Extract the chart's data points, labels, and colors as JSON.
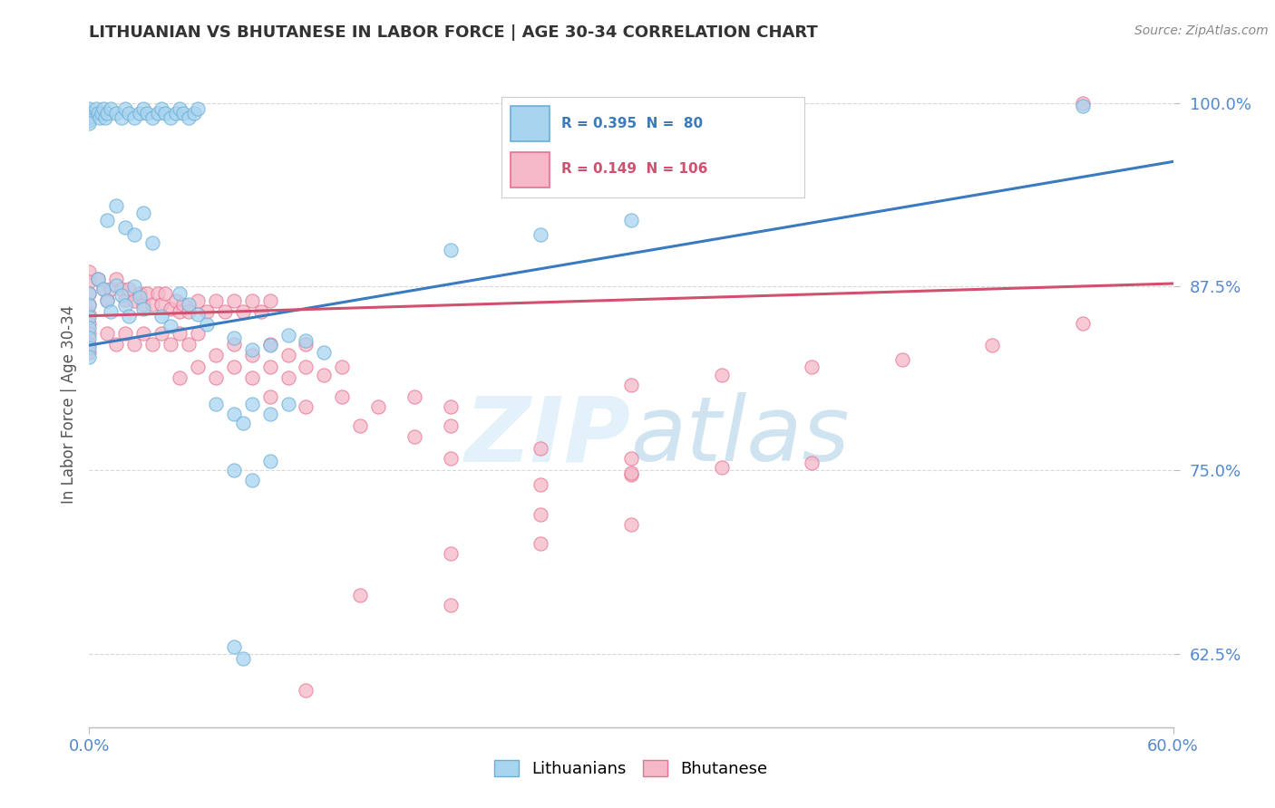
{
  "title": "LITHUANIAN VS BHUTANESE IN LABOR FORCE | AGE 30-34 CORRELATION CHART",
  "source_text": "Source: ZipAtlas.com",
  "ylabel": "In Labor Force | Age 30-34",
  "xmin": 0.0,
  "xmax": 0.6,
  "ymin": 0.575,
  "ymax": 1.015,
  "yticks": [
    0.625,
    0.75,
    0.875,
    1.0
  ],
  "ytick_labels": [
    "62.5%",
    "75.0%",
    "87.5%",
    "100.0%"
  ],
  "xtick_labels": [
    "0.0%",
    "60.0%"
  ],
  "xticks": [
    0.0,
    0.6
  ],
  "legend_blue_label": "Lithuanians",
  "legend_pink_label": "Bhutanese",
  "blue_R": 0.395,
  "blue_N": 80,
  "pink_R": 0.149,
  "pink_N": 106,
  "blue_color": "#a8d4f0",
  "pink_color": "#f5b8c8",
  "blue_edge_color": "#6aaed6",
  "pink_edge_color": "#e87090",
  "blue_line_color": "#3a7bbf",
  "pink_line_color": "#d05070",
  "watermark_color": "#c8e4f8",
  "watermark_alpha": 0.5,
  "background_color": "#ffffff",
  "grid_color": "#d8d8d8",
  "grid_style": "--",
  "blue_scatter": [
    [
      0.0,
      0.996
    ],
    [
      0.0,
      0.993
    ],
    [
      0.0,
      0.99
    ],
    [
      0.0,
      0.988
    ],
    [
      0.0,
      0.986
    ],
    [
      0.004,
      0.996
    ],
    [
      0.005,
      0.993
    ],
    [
      0.006,
      0.99
    ],
    [
      0.007,
      0.993
    ],
    [
      0.008,
      0.996
    ],
    [
      0.009,
      0.99
    ],
    [
      0.01,
      0.993
    ],
    [
      0.012,
      0.996
    ],
    [
      0.015,
      0.993
    ],
    [
      0.018,
      0.99
    ],
    [
      0.02,
      0.996
    ],
    [
      0.022,
      0.993
    ],
    [
      0.025,
      0.99
    ],
    [
      0.028,
      0.993
    ],
    [
      0.03,
      0.996
    ],
    [
      0.032,
      0.993
    ],
    [
      0.035,
      0.99
    ],
    [
      0.038,
      0.993
    ],
    [
      0.04,
      0.996
    ],
    [
      0.042,
      0.993
    ],
    [
      0.045,
      0.99
    ],
    [
      0.048,
      0.993
    ],
    [
      0.05,
      0.996
    ],
    [
      0.052,
      0.993
    ],
    [
      0.055,
      0.99
    ],
    [
      0.058,
      0.993
    ],
    [
      0.06,
      0.996
    ],
    [
      0.0,
      0.87
    ],
    [
      0.0,
      0.862
    ],
    [
      0.0,
      0.854
    ],
    [
      0.0,
      0.847
    ],
    [
      0.0,
      0.84
    ],
    [
      0.0,
      0.833
    ],
    [
      0.0,
      0.827
    ],
    [
      0.005,
      0.88
    ],
    [
      0.008,
      0.873
    ],
    [
      0.01,
      0.865
    ],
    [
      0.012,
      0.858
    ],
    [
      0.015,
      0.876
    ],
    [
      0.018,
      0.869
    ],
    [
      0.02,
      0.862
    ],
    [
      0.022,
      0.855
    ],
    [
      0.025,
      0.875
    ],
    [
      0.028,
      0.868
    ],
    [
      0.03,
      0.86
    ],
    [
      0.01,
      0.92
    ],
    [
      0.015,
      0.93
    ],
    [
      0.02,
      0.915
    ],
    [
      0.025,
      0.91
    ],
    [
      0.03,
      0.925
    ],
    [
      0.035,
      0.905
    ],
    [
      0.04,
      0.855
    ],
    [
      0.045,
      0.848
    ],
    [
      0.05,
      0.87
    ],
    [
      0.055,
      0.863
    ],
    [
      0.06,
      0.856
    ],
    [
      0.065,
      0.849
    ],
    [
      0.08,
      0.84
    ],
    [
      0.09,
      0.832
    ],
    [
      0.1,
      0.835
    ],
    [
      0.11,
      0.842
    ],
    [
      0.12,
      0.838
    ],
    [
      0.13,
      0.83
    ],
    [
      0.07,
      0.795
    ],
    [
      0.08,
      0.788
    ],
    [
      0.085,
      0.782
    ],
    [
      0.09,
      0.795
    ],
    [
      0.1,
      0.788
    ],
    [
      0.11,
      0.795
    ],
    [
      0.08,
      0.75
    ],
    [
      0.09,
      0.743
    ],
    [
      0.1,
      0.756
    ],
    [
      0.08,
      0.63
    ],
    [
      0.085,
      0.622
    ],
    [
      0.2,
      0.9
    ],
    [
      0.25,
      0.91
    ],
    [
      0.3,
      0.92
    ],
    [
      0.55,
      0.998
    ]
  ],
  "pink_scatter": [
    [
      0.0,
      0.885
    ],
    [
      0.0,
      0.878
    ],
    [
      0.0,
      0.87
    ],
    [
      0.0,
      0.863
    ],
    [
      0.0,
      0.856
    ],
    [
      0.0,
      0.85
    ],
    [
      0.0,
      0.843
    ],
    [
      0.0,
      0.836
    ],
    [
      0.0,
      0.83
    ],
    [
      0.005,
      0.88
    ],
    [
      0.008,
      0.873
    ],
    [
      0.01,
      0.866
    ],
    [
      0.012,
      0.873
    ],
    [
      0.015,
      0.88
    ],
    [
      0.018,
      0.873
    ],
    [
      0.02,
      0.866
    ],
    [
      0.022,
      0.873
    ],
    [
      0.025,
      0.865
    ],
    [
      0.028,
      0.87
    ],
    [
      0.03,
      0.863
    ],
    [
      0.032,
      0.87
    ],
    [
      0.035,
      0.863
    ],
    [
      0.038,
      0.87
    ],
    [
      0.04,
      0.863
    ],
    [
      0.042,
      0.87
    ],
    [
      0.045,
      0.86
    ],
    [
      0.048,
      0.865
    ],
    [
      0.05,
      0.858
    ],
    [
      0.052,
      0.863
    ],
    [
      0.055,
      0.858
    ],
    [
      0.06,
      0.865
    ],
    [
      0.065,
      0.858
    ],
    [
      0.07,
      0.865
    ],
    [
      0.075,
      0.858
    ],
    [
      0.08,
      0.865
    ],
    [
      0.085,
      0.858
    ],
    [
      0.09,
      0.865
    ],
    [
      0.095,
      0.858
    ],
    [
      0.1,
      0.865
    ],
    [
      0.01,
      0.843
    ],
    [
      0.015,
      0.836
    ],
    [
      0.02,
      0.843
    ],
    [
      0.025,
      0.836
    ],
    [
      0.03,
      0.843
    ],
    [
      0.035,
      0.836
    ],
    [
      0.04,
      0.843
    ],
    [
      0.045,
      0.836
    ],
    [
      0.05,
      0.843
    ],
    [
      0.055,
      0.836
    ],
    [
      0.06,
      0.843
    ],
    [
      0.07,
      0.828
    ],
    [
      0.08,
      0.836
    ],
    [
      0.09,
      0.828
    ],
    [
      0.1,
      0.836
    ],
    [
      0.11,
      0.828
    ],
    [
      0.12,
      0.836
    ],
    [
      0.05,
      0.813
    ],
    [
      0.06,
      0.82
    ],
    [
      0.07,
      0.813
    ],
    [
      0.08,
      0.82
    ],
    [
      0.09,
      0.813
    ],
    [
      0.1,
      0.82
    ],
    [
      0.11,
      0.813
    ],
    [
      0.12,
      0.82
    ],
    [
      0.13,
      0.815
    ],
    [
      0.14,
      0.82
    ],
    [
      0.1,
      0.8
    ],
    [
      0.12,
      0.793
    ],
    [
      0.14,
      0.8
    ],
    [
      0.16,
      0.793
    ],
    [
      0.18,
      0.8
    ],
    [
      0.2,
      0.793
    ],
    [
      0.15,
      0.78
    ],
    [
      0.18,
      0.773
    ],
    [
      0.2,
      0.78
    ],
    [
      0.2,
      0.758
    ],
    [
      0.25,
      0.765
    ],
    [
      0.3,
      0.758
    ],
    [
      0.25,
      0.74
    ],
    [
      0.3,
      0.747
    ],
    [
      0.35,
      0.752
    ],
    [
      0.3,
      0.808
    ],
    [
      0.35,
      0.815
    ],
    [
      0.4,
      0.82
    ],
    [
      0.45,
      0.825
    ],
    [
      0.5,
      0.835
    ],
    [
      0.55,
      0.85
    ],
    [
      0.55,
      1.0
    ],
    [
      0.25,
      0.72
    ],
    [
      0.3,
      0.713
    ],
    [
      0.2,
      0.693
    ],
    [
      0.25,
      0.7
    ],
    [
      0.15,
      0.665
    ],
    [
      0.2,
      0.658
    ],
    [
      0.3,
      0.748
    ],
    [
      0.4,
      0.755
    ],
    [
      0.12,
      0.6
    ]
  ]
}
